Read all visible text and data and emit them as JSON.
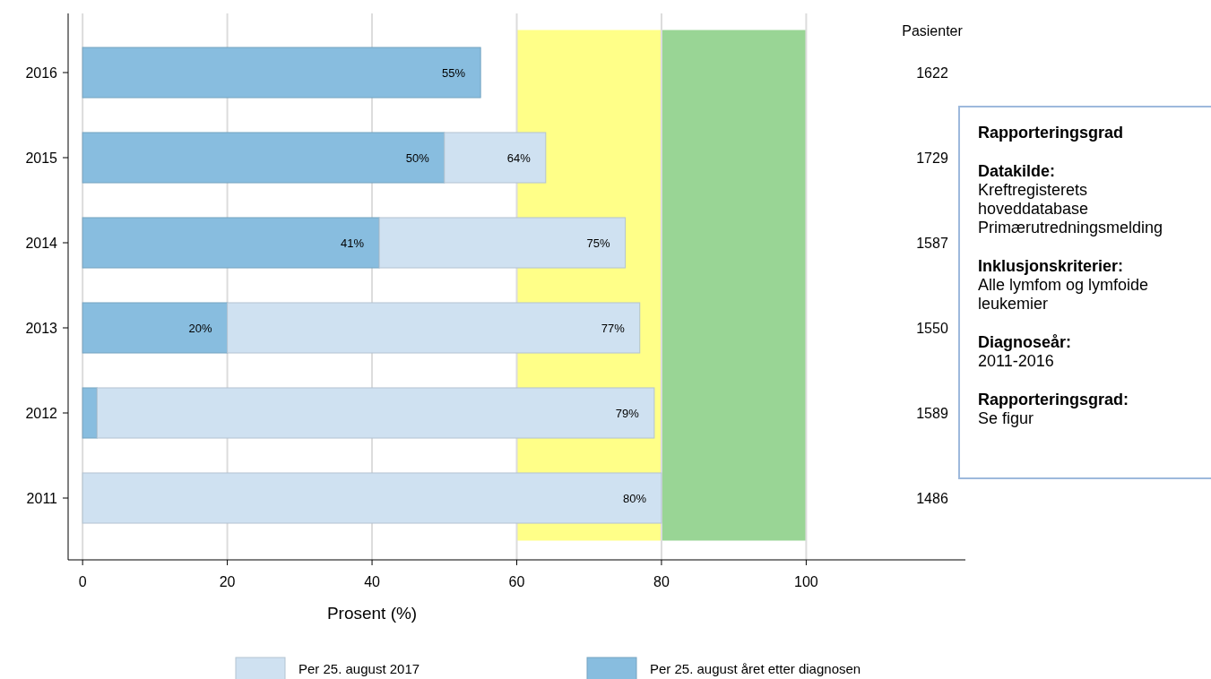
{
  "chart_data": {
    "type": "bar",
    "orientation": "horizontal",
    "xlabel": "Prosent (%)",
    "categories": [
      "2016",
      "2015",
      "2014",
      "2013",
      "2012",
      "2011"
    ],
    "series": [
      {
        "name": "Per 25. august året etter diagnosen",
        "color": "#88bddf",
        "values": [
          55,
          50,
          41,
          20,
          2,
          null
        ],
        "value_labels": [
          "55%",
          "50%",
          "41%",
          "20%",
          null,
          null
        ]
      },
      {
        "name": "Per 25. august 2017",
        "color": "#cfe1f1",
        "values": [
          null,
          14,
          34,
          57,
          77,
          80
        ]
      }
    ],
    "stacked": true,
    "totals": [
      null,
      "64%",
      "75%",
      "77%",
      "79%",
      "80%"
    ],
    "xlim": [
      -2,
      122
    ],
    "xticks": [
      0,
      20,
      40,
      60,
      80,
      100
    ],
    "grid": "x",
    "legend": "bottom",
    "bands": [
      {
        "axis": "x",
        "from": 60,
        "to": 80,
        "color": "#ffff88"
      },
      {
        "axis": "x",
        "from": 80,
        "to": 100,
        "color": "#99d595"
      }
    ],
    "annotations": [
      "Pasienter",
      "1622",
      "1729",
      "1587",
      "1550",
      "1589",
      "1486",
      "Rapporteringsgrad",
      "Datakilde:",
      "Kreftregisterets\nhoveddatabase\nPrimærutredningsmelding",
      "Inklusjonskriterier:",
      "Alle lymfom og lymfoide\nleukemier",
      "Diagnoseår:",
      "2011-2016",
      "Rapporteringsgrad:",
      "Se figur"
    ]
  }
}
